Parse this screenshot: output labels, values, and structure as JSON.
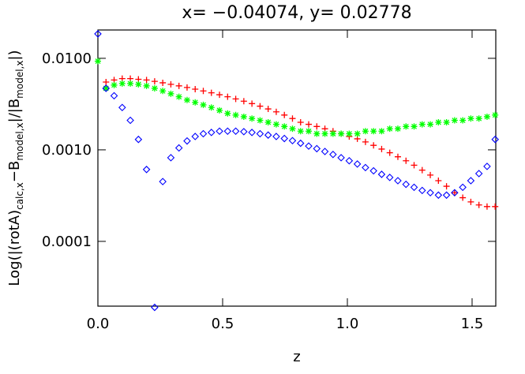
{
  "chart_data": {
    "type": "scatter",
    "title": "x=  −0.04074,   y=   0.02778",
    "xlabel": "z",
    "ylabel_parts": [
      "Log(|(rotA)",
      "calc,x",
      "−B",
      "model,x",
      "|/|B",
      "model,x",
      "|)"
    ],
    "xlim": [
      0,
      1.595
    ],
    "ylim": [
      1.96e-05,
      0.0204
    ],
    "log_y": true,
    "xticks": [
      {
        "value": 0,
        "label": "0.0"
      },
      {
        "value": 0.5,
        "label": "0.5"
      },
      {
        "value": 1,
        "label": "1.0"
      },
      {
        "value": 1.5,
        "label": "1.5"
      }
    ],
    "yticks": [
      {
        "value": 0.0001,
        "label": "0.0001"
      },
      {
        "value": 0.001,
        "label": "0.0010"
      },
      {
        "value": 0.01,
        "label": "0.0100"
      }
    ],
    "x": [
      0,
      0.0325,
      0.065,
      0.0975,
      0.13,
      0.1625,
      0.195,
      0.2275,
      0.26,
      0.2925,
      0.325,
      0.3575,
      0.39,
      0.4225,
      0.455,
      0.4875,
      0.52,
      0.5525,
      0.585,
      0.6175,
      0.65,
      0.6825,
      0.715,
      0.7475,
      0.78,
      0.8125,
      0.845,
      0.8775,
      0.91,
      0.9425,
      0.975,
      1.0075,
      1.04,
      1.0725,
      1.105,
      1.1375,
      1.17,
      1.2025,
      1.235,
      1.2675,
      1.3,
      1.3325,
      1.365,
      1.3975,
      1.43,
      1.4625,
      1.495,
      1.5275,
      1.56,
      1.5925
    ],
    "series": [
      {
        "marker": "plus",
        "color": "#ff0000",
        "values": [
          null,
          0.0055,
          0.0058,
          0.006,
          0.006,
          0.0059,
          0.0058,
          0.0056,
          0.0054,
          0.0052,
          0.005,
          0.0048,
          0.0046,
          0.0044,
          0.0042,
          0.004,
          0.0038,
          0.0036,
          0.0034,
          0.0032,
          0.003,
          0.0028,
          0.0026,
          0.0024,
          0.0022,
          0.002,
          0.0019,
          0.0018,
          0.0017,
          0.0016,
          0.0015,
          0.0014,
          0.00132,
          0.00122,
          0.00112,
          0.00102,
          0.00093,
          0.00084,
          0.00076,
          0.00068,
          0.0006,
          0.00053,
          0.00046,
          0.0004,
          0.00034,
          0.0003,
          0.00027,
          0.00025,
          0.00024,
          0.00024
        ]
      },
      {
        "marker": "asterisk",
        "color": "#00ff00",
        "values": [
          0.0093,
          0.0047,
          0.0051,
          0.0053,
          0.0053,
          0.0052,
          0.005,
          0.0047,
          0.0044,
          0.0041,
          0.0038,
          0.0035,
          0.0033,
          0.0031,
          0.0029,
          0.0027,
          0.0025,
          0.0024,
          0.0023,
          0.0022,
          0.0021,
          0.002,
          0.0019,
          0.0018,
          0.0017,
          0.0016,
          0.0016,
          0.0015,
          0.0015,
          0.0015,
          0.0015,
          0.0015,
          0.0015,
          0.0016,
          0.0016,
          0.0016,
          0.0017,
          0.0017,
          0.0018,
          0.0018,
          0.0019,
          0.0019,
          0.002,
          0.002,
          0.0021,
          0.0021,
          0.0022,
          0.0022,
          0.0023,
          0.0024
        ]
      },
      {
        "marker": "diamond",
        "color": "#0000ff",
        "values": [
          0.0185,
          0.0047,
          0.0039,
          0.0029,
          0.0021,
          0.0013,
          0.00061,
          1.9e-05,
          0.00045,
          0.00082,
          0.00105,
          0.00125,
          0.0014,
          0.0015,
          0.00155,
          0.0016,
          0.0016,
          0.0016,
          0.00158,
          0.00155,
          0.0015,
          0.00145,
          0.0014,
          0.00133,
          0.00126,
          0.00118,
          0.0011,
          0.00103,
          0.00096,
          0.00089,
          0.00082,
          0.00076,
          0.0007,
          0.00064,
          0.00059,
          0.00054,
          0.0005,
          0.00046,
          0.00042,
          0.00039,
          0.00036,
          0.00034,
          0.00032,
          0.00032,
          0.00034,
          0.00039,
          0.00046,
          0.00055,
          0.00066,
          0.0013
        ]
      }
    ]
  }
}
